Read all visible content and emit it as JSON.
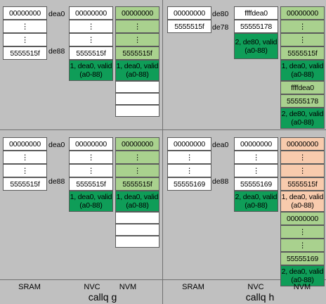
{
  "colors": {
    "background": "#c0c0c0",
    "white": "#ffffff",
    "light_green": "#a9d18e",
    "dark_green": "#0f9d58",
    "peach": "#f8cbad"
  },
  "columns": {
    "left": {
      "sram": "SRAM",
      "nvc": "NVC",
      "nvm": "NVM",
      "caption": "callq g"
    },
    "right": {
      "sram": "SRAM",
      "nvc": "NVC",
      "nvm": "NVM",
      "caption": "callq h"
    }
  },
  "panels": {
    "tl": {
      "sram": [
        "00000000",
        "⋮",
        "⋮",
        "5555515f"
      ],
      "sram_addr_top": "dea0",
      "sram_addr_bottom": "de88",
      "nvc": [
        "00000000",
        "⋮",
        "⋮",
        "5555515f",
        "1, dea0, valid(a0-88)"
      ],
      "nvm": [
        "00000000",
        "⋮",
        "⋮",
        "5555515f",
        "1, dea0, valid(a0-88)",
        "",
        "",
        ""
      ]
    },
    "tr": {
      "sram": [
        "00000000",
        "5555515f"
      ],
      "sram_addr_top": "de80",
      "sram_addr_bottom": "de78",
      "nvc": [
        "ffffdea0",
        "55555178",
        "2, de80, valid(a0-88)"
      ],
      "nvm": [
        "00000000",
        "⋮",
        "⋮",
        "5555515f",
        "1, dea0, valid(a0-88)",
        "ffffdea0",
        "55555178",
        "2, de80, valid(a0-88)"
      ]
    },
    "bl": {
      "sram": [
        "00000000",
        "⋮",
        "⋮",
        "5555515f"
      ],
      "sram_addr_top": "dea0",
      "sram_addr_bottom": "de88",
      "nvc": [
        "00000000",
        "⋮",
        "⋮",
        "5555515f",
        "1, dea0, valid(a0-88)"
      ],
      "nvm": [
        "00000000",
        "⋮",
        "⋮",
        "5555515f",
        "1, dea0, valid(a0-88)",
        "",
        "",
        ""
      ]
    },
    "br": {
      "sram": [
        "00000000",
        "⋮",
        "⋮",
        "55555169"
      ],
      "sram_addr_top": "dea0",
      "sram_addr_bottom": "de88",
      "nvc": [
        "00000000",
        "⋮",
        "⋮",
        "55555169",
        "2, dea0, valid(a0-88)"
      ],
      "nvm": [
        "00000000",
        "⋮",
        "⋮",
        "5555515f",
        "1, dea0, valid(a0-88)",
        "00000000",
        "⋮",
        "⋮",
        "55555169",
        "2, dea0, valid(a0-88)"
      ]
    }
  }
}
